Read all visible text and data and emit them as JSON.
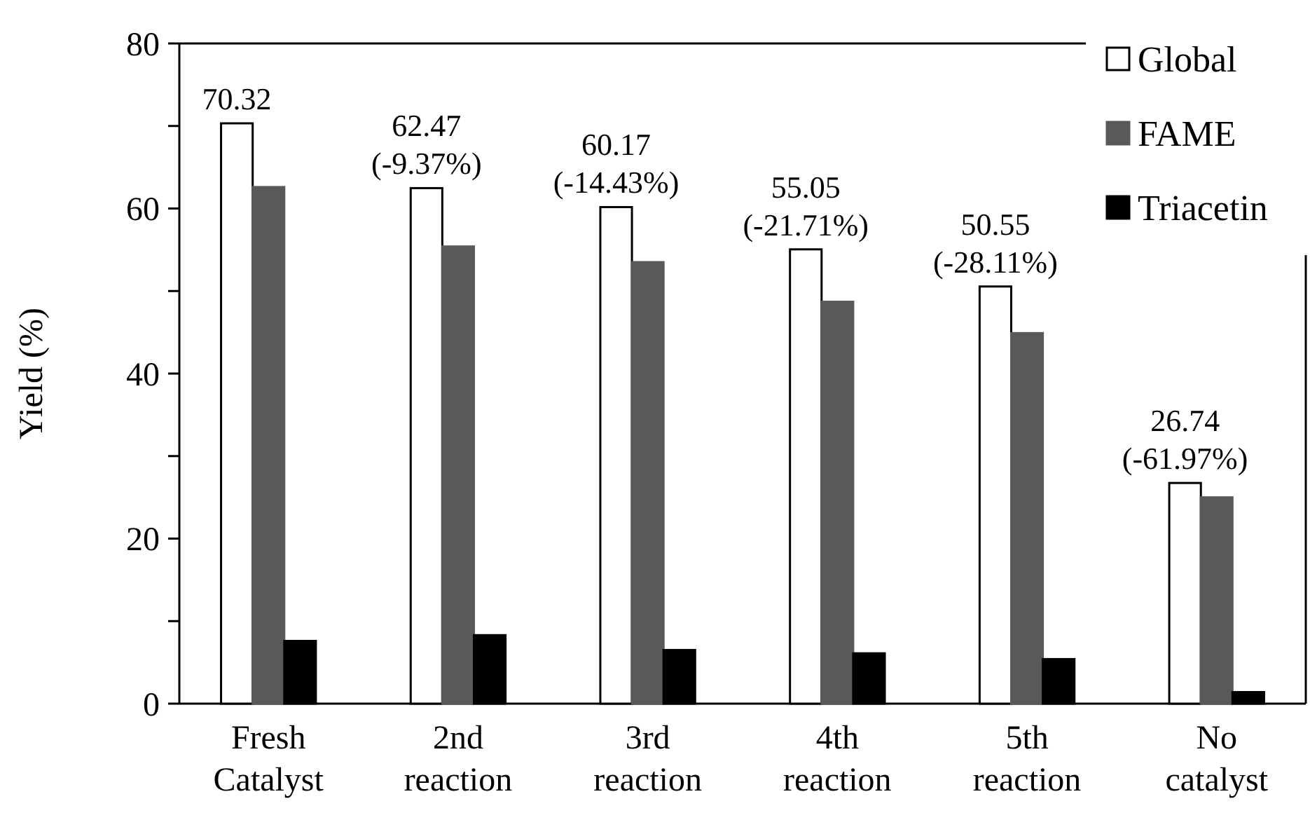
{
  "chart_data": {
    "type": "bar",
    "ylabel": "Yield (%)",
    "categories": [
      "Fresh\nCatalyst",
      "2nd\nreaction",
      "3rd\nreaction",
      "4th\nreaction",
      "5th\nreaction",
      "No\ncatalyst"
    ],
    "series": [
      {
        "name": "Global",
        "color": "#ffffff",
        "values": [
          70.32,
          62.47,
          60.17,
          55.05,
          50.55,
          26.74
        ],
        "value_labels": [
          "70.32",
          "62.47\n(-9.37%)",
          "60.17\n(-14.43%)",
          "55.05\n(-21.71%)",
          "50.55\n(-28.11%)",
          "26.74\n(-61.97%)"
        ]
      },
      {
        "name": "FAME",
        "color": "#595959",
        "values": [
          62.6,
          55.4,
          53.5,
          48.7,
          44.9,
          25.0
        ]
      },
      {
        "name": "Triacetin",
        "color": "#000000",
        "values": [
          7.6,
          8.3,
          6.5,
          6.1,
          5.4,
          1.4
        ]
      }
    ],
    "ylim": [
      0,
      80
    ],
    "yticks": [
      0,
      {
        "value": 10,
        "label": null
      },
      20,
      {
        "value": 30,
        "label": null
      },
      40,
      {
        "value": 50,
        "label": null
      },
      60,
      {
        "value": 70,
        "label": null
      },
      80
    ],
    "legend": "top right",
    "grid": false
  }
}
